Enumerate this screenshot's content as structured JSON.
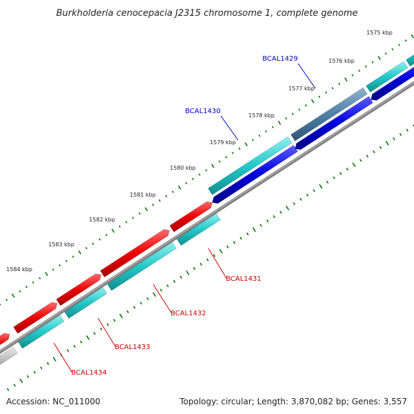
{
  "title": "Burkholderia cenocepacia J2315 chromosome 1, complete genome",
  "colors": {
    "forward_gene": "#ee0000",
    "reverse_gene": "#0000dd",
    "cds": "#22c9c9",
    "cds_selected": "#4f7fa6",
    "backbone": "#808080",
    "tick": "#007700",
    "label_forward": "#cc0000",
    "label_reverse": "#0000bb"
  },
  "ticks": [
    "1575 kbp",
    "1576 kbp",
    "1577 kbp",
    "1578 kbp",
    "1579 kbp",
    "1580 kbp",
    "1581 kbp",
    "1582 kbp",
    "1583 kbp",
    "1584 kbp"
  ],
  "genes": [
    {
      "name": "BCAL1429",
      "strand": "reverse"
    },
    {
      "name": "BCAL1430",
      "strand": "reverse"
    },
    {
      "name": "BCAL1431",
      "strand": "forward"
    },
    {
      "name": "BCAL1432",
      "strand": "forward"
    },
    {
      "name": "BCAL1433",
      "strand": "forward"
    },
    {
      "name": "BCAL1434",
      "strand": "forward"
    }
  ],
  "footer": {
    "accession": "Accession: NC_011000",
    "info": "Topology: circular; Length: 3,870,082 bp; Genes: 3,557"
  }
}
